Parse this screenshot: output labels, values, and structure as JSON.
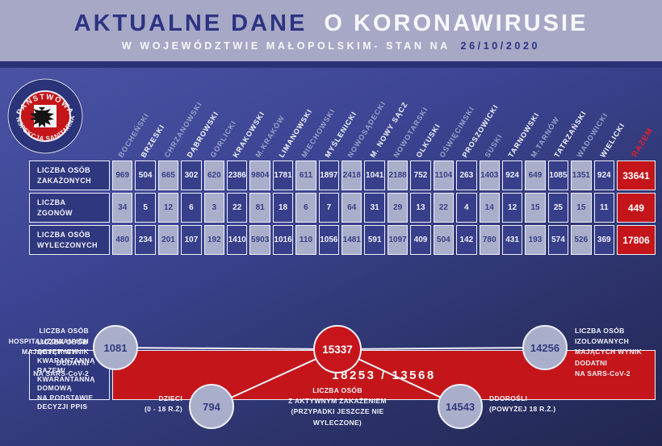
{
  "header": {
    "title_primary": "AKTUALNE DANE",
    "title_secondary": "O KORONAWIRUSIE",
    "subtitle_prefix": "W WOJEWÓDZTWIE MAŁOPOLSKIM- STAN NA",
    "subtitle_date": "26/10/2020"
  },
  "logo": {
    "top_text": "PAŃSTWOWA",
    "bottom_text": "INSPEKCJA SANITARNA"
  },
  "chart_data": {
    "type": "table",
    "title": "AKTUALNE DANE O KORONAWIRUSIE - W WOJEWÓDZTWIE MAŁOPOLSKIM - STAN NA 26/10/2020",
    "categories": [
      "BOCHEŃSKI",
      "BRZESKI",
      "CHRZANOWSKI",
      "DĄBROWSKI",
      "GORLICKI",
      "KRAKOWSKI",
      "M.KRAKÓW",
      "LIMANOWSKI",
      "MIECHOWSKI",
      "MYŚLENICKI",
      "NOWOSĄDECKI",
      "M. NOWY SĄCZ",
      "NOWOTARSKI",
      "OLKUSKI",
      "OŚWIĘCIMSKI",
      "PROSZOWICKI",
      "SUSKI",
      "TARNOWSKI",
      "M.TARNÓW",
      "TATRZAŃSKI",
      "WADOWICKI",
      "WIELICKI"
    ],
    "total_label": "RAZEM",
    "rows": [
      {
        "label": "LICZBA OSÓB\nZAKAŻONYCH",
        "values": [
          969,
          504,
          665,
          302,
          620,
          2386,
          9804,
          1781,
          611,
          1897,
          2418,
          1041,
          2188,
          752,
          1104,
          263,
          1403,
          924,
          649,
          1085,
          1351,
          924
        ],
        "total": 33641
      },
      {
        "label": "LICZBA\nZGONÓW",
        "values": [
          34,
          5,
          12,
          6,
          3,
          22,
          81,
          18,
          6,
          7,
          64,
          31,
          29,
          13,
          22,
          4,
          14,
          12,
          15,
          25,
          15,
          11
        ],
        "total": 449
      },
      {
        "label": "LICZBA OSÓB\nWYLECZONYCH",
        "values": [
          480,
          234,
          201,
          107,
          192,
          1410,
          5903,
          1016,
          110,
          1056,
          1481,
          591,
          1097,
          409,
          504,
          142,
          780,
          431,
          193,
          574,
          526,
          369
        ],
        "total": 17806
      }
    ],
    "quarantine": {
      "label": "LICZBA OSÓB OBJĘTYCH\nKWARANTANNĄ RAZEM/\nKWARANTANNĄ DOMOWĄ\nNA PODSTAWIE DECYZJI PPIS",
      "value": "18253 / 13568"
    }
  },
  "diagram": {
    "hospitalized": {
      "label": "LICZBA OSÓB\nHOSPITALIZOWANYCH\nMAJĄCYCH WYNIK DODATNI\nNA SARS-CoV-2",
      "value": "1081"
    },
    "active": {
      "label": "LICZBA OSÓB\nZ AKTYWNYM ZAKAŻENIEM\n(PRZYPADKI JESZCZE NIE\nWYLECZONE)",
      "value": "15337"
    },
    "isolated": {
      "label": "LICZBA OSÓB\nIZOLOWANYCH\nMAJĄCYCH WYNIK DODATNI\nNA SARS-CoV-2",
      "value": "14256"
    },
    "children": {
      "label": "DZIECI\n(0 - 18 R.Ż)",
      "value": "794"
    },
    "adults": {
      "label": "DDOROŚLI\n(POWYŻEJ 18 R.Ż.)",
      "value": "14543"
    }
  },
  "colors": {
    "header_bg": "#a7a8c6",
    "title_navy": "#2d3382",
    "accent_red": "#c4161a",
    "razem_header_red": "#e61e28",
    "light_cell": "#a9aecb",
    "dark_cell": "#373f8a",
    "background_blue": "#3c4493"
  }
}
